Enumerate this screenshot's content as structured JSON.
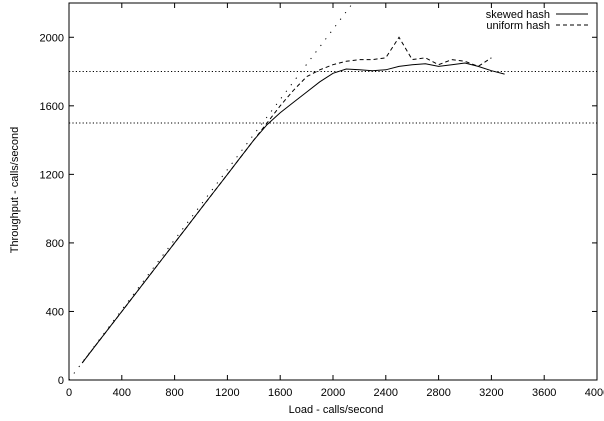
{
  "chart_data": {
    "type": "line",
    "title": "",
    "xlabel": "Load - calls/second",
    "ylabel": "Throughput - calls/second",
    "xlim": [
      0,
      4000
    ],
    "ylim": [
      0,
      2200
    ],
    "xticks": [
      "0",
      "400",
      "800",
      "1200",
      "1600",
      "2000",
      "2400",
      "2800",
      "3200",
      "3600",
      "4000"
    ],
    "yticks": [
      "0",
      "400",
      "800",
      "1200",
      "1600",
      "2000"
    ],
    "grid": false,
    "legend_position": "top-right",
    "reference_lines": [
      {
        "kind": "horizontal",
        "y": 1800,
        "style": "dotted"
      },
      {
        "kind": "horizontal",
        "y": 1500,
        "style": "dotted"
      },
      {
        "kind": "diagonal",
        "from": [
          0,
          0
        ],
        "to": [
          2150,
          2200
        ],
        "style": "dotted"
      }
    ],
    "series": [
      {
        "name": "skewed hash",
        "style": "solid",
        "x": [
          100,
          200,
          300,
          400,
          500,
          600,
          700,
          800,
          900,
          1000,
          1100,
          1200,
          1300,
          1400,
          1500,
          1600,
          1700,
          1800,
          1900,
          2000,
          2100,
          2200,
          2300,
          2400,
          2500,
          2600,
          2700,
          2800,
          2900,
          3000,
          3100,
          3200,
          3300
        ],
        "y": [
          100,
          200,
          300,
          400,
          500,
          600,
          700,
          800,
          900,
          1000,
          1100,
          1200,
          1300,
          1400,
          1490,
          1560,
          1620,
          1680,
          1740,
          1790,
          1815,
          1810,
          1805,
          1810,
          1830,
          1840,
          1845,
          1830,
          1840,
          1850,
          1830,
          1805,
          1785
        ]
      },
      {
        "name": "uniform hash",
        "style": "dashed",
        "x": [
          100,
          200,
          300,
          400,
          500,
          600,
          700,
          800,
          900,
          1000,
          1100,
          1200,
          1300,
          1400,
          1500,
          1600,
          1700,
          1800,
          1900,
          2000,
          2100,
          2200,
          2300,
          2400,
          2500,
          2600,
          2700,
          2800,
          2900,
          3000,
          3100,
          3200
        ],
        "y": [
          100,
          200,
          300,
          400,
          500,
          600,
          700,
          800,
          900,
          1000,
          1100,
          1200,
          1300,
          1400,
          1500,
          1600,
          1690,
          1770,
          1810,
          1840,
          1860,
          1870,
          1870,
          1880,
          2000,
          1870,
          1880,
          1840,
          1870,
          1860,
          1830,
          1880
        ]
      }
    ]
  }
}
